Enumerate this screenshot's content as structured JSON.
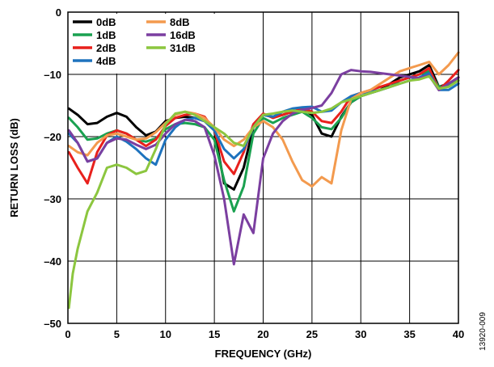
{
  "chart_data": {
    "type": "line",
    "xlabel": "FREQUENCY (GHz)",
    "ylabel": "RETURN LOSS (dB)",
    "xlim": [
      0,
      40
    ],
    "ylim": [
      -50,
      0
    ],
    "xticks": [
      0,
      5,
      10,
      15,
      20,
      25,
      30,
      35,
      40
    ],
    "yticks": [
      0,
      -10,
      -20,
      -30,
      -40,
      -50
    ],
    "xtick_labels": [
      "0",
      "5",
      "10",
      "15",
      "20",
      "25",
      "30",
      "35",
      "40"
    ],
    "ytick_labels": [
      "0",
      "–10",
      "–20",
      "–30",
      "–40",
      "–50"
    ],
    "grid": true,
    "legend_position": "top-left",
    "figure_id": "13920-009",
    "series": [
      {
        "name": "0dB",
        "color": "#000000",
        "x": [
          0.1,
          1,
          2,
          3,
          4,
          5,
          6,
          7,
          8,
          9,
          10,
          11,
          12,
          13,
          14,
          15,
          16,
          17,
          18,
          19,
          20,
          21,
          22,
          23,
          24,
          25,
          26,
          27,
          28,
          29,
          30,
          31,
          32,
          33,
          34,
          35,
          36,
          37,
          38,
          39,
          40
        ],
        "y": [
          -15.5,
          -16.5,
          -18,
          -17.8,
          -16.8,
          -16.2,
          -16.8,
          -18.5,
          -19.8,
          -19.2,
          -17.5,
          -17,
          -16.8,
          -17,
          -17.5,
          -19,
          -27.5,
          -28.5,
          -25,
          -18.5,
          -16.5,
          -16.8,
          -16.5,
          -16,
          -15.5,
          -16.5,
          -19.5,
          -20,
          -16.8,
          -14.5,
          -13.5,
          -13,
          -12.5,
          -11.5,
          -10.5,
          -10,
          -9.5,
          -8.5,
          -12,
          -11.5,
          -10.5
        ]
      },
      {
        "name": "1dB",
        "color": "#1aa150",
        "x": [
          0.1,
          1,
          2,
          3,
          4,
          5,
          6,
          7,
          8,
          9,
          10,
          11,
          12,
          13,
          14,
          15,
          16,
          17,
          18,
          19,
          20,
          21,
          22,
          23,
          24,
          25,
          26,
          27,
          28,
          29,
          30,
          31,
          32,
          33,
          34,
          35,
          36,
          37,
          38,
          39,
          40
        ],
        "y": [
          -17,
          -18.5,
          -20.5,
          -20.3,
          -19.5,
          -19,
          -19.5,
          -20.5,
          -20.8,
          -20.3,
          -18.8,
          -18,
          -17.8,
          -18,
          -18.5,
          -20.5,
          -27,
          -32,
          -28,
          -19.5,
          -17,
          -17.8,
          -17,
          -16.5,
          -16,
          -17,
          -18.5,
          -18.8,
          -17,
          -14.5,
          -13.5,
          -13,
          -12.5,
          -12,
          -11,
          -10.5,
          -10,
          -9.5,
          -12,
          -11.8,
          -11
        ]
      },
      {
        "name": "2dB",
        "color": "#e8201c",
        "x": [
          0.1,
          1,
          2,
          3,
          4,
          5,
          6,
          7,
          8,
          9,
          10,
          11,
          12,
          13,
          14,
          15,
          16,
          17,
          18,
          19,
          20,
          21,
          22,
          23,
          24,
          25,
          26,
          27,
          28,
          29,
          30,
          31,
          32,
          33,
          34,
          35,
          36,
          37,
          38,
          39,
          40
        ],
        "y": [
          -22.5,
          -25,
          -27.5,
          -22.5,
          -19.8,
          -19,
          -19.5,
          -20.5,
          -21.5,
          -20.5,
          -18.3,
          -17,
          -16.5,
          -16.3,
          -16.8,
          -19,
          -24,
          -26,
          -22.5,
          -18,
          -16.3,
          -17,
          -16.5,
          -16,
          -15.5,
          -16,
          -17.5,
          -17.8,
          -16,
          -13.5,
          -13,
          -12.5,
          -12,
          -11.5,
          -11,
          -10.5,
          -10,
          -9,
          -12.5,
          -11,
          -9.3
        ]
      },
      {
        "name": "4dB",
        "color": "#1e73be",
        "x": [
          0.1,
          1,
          2,
          3,
          4,
          5,
          6,
          7,
          8,
          9,
          10,
          11,
          12,
          13,
          14,
          15,
          16,
          17,
          18,
          19,
          20,
          21,
          22,
          23,
          24,
          25,
          26,
          27,
          28,
          29,
          30,
          31,
          32,
          33,
          34,
          35,
          36,
          37,
          38,
          39,
          40
        ],
        "y": [
          -19.5,
          -21,
          -24,
          -23.5,
          -21,
          -20,
          -20.8,
          -22,
          -23.5,
          -24.5,
          -20.5,
          -18.5,
          -17.3,
          -17,
          -17.5,
          -19,
          -22,
          -23.5,
          -22,
          -18.5,
          -16.5,
          -16.8,
          -16,
          -15.5,
          -15.3,
          -15.2,
          -16,
          -15.8,
          -14.5,
          -13.5,
          -13,
          -12.8,
          -12.5,
          -12,
          -11.5,
          -11,
          -10.5,
          -9.8,
          -12.5,
          -12.5,
          -11.5
        ]
      },
      {
        "name": "8dB",
        "color": "#f39a4e",
        "x": [
          0.1,
          1,
          2,
          3,
          4,
          5,
          6,
          7,
          8,
          9,
          10,
          11,
          12,
          13,
          14,
          15,
          16,
          17,
          18,
          19,
          20,
          21,
          22,
          23,
          24,
          25,
          26,
          27,
          28,
          29,
          30,
          31,
          32,
          33,
          34,
          35,
          36,
          37,
          38,
          39,
          40
        ],
        "y": [
          -21.5,
          -22.5,
          -23,
          -21,
          -19.8,
          -19.5,
          -20,
          -20.5,
          -20.3,
          -19.3,
          -17.8,
          -16.5,
          -16,
          -16.3,
          -17,
          -18.5,
          -20.5,
          -21.5,
          -20.5,
          -18.5,
          -17.5,
          -18.5,
          -20.5,
          -24,
          -27,
          -28,
          -26.5,
          -27.5,
          -19,
          -14,
          -13,
          -12.5,
          -11.5,
          -10.5,
          -9.5,
          -9,
          -8.5,
          -8,
          -10,
          -8.5,
          -6.5
        ]
      },
      {
        "name": "16dB",
        "color": "#7b3fa0",
        "x": [
          0.1,
          1,
          2,
          3,
          4,
          5,
          6,
          7,
          8,
          9,
          10,
          11,
          12,
          13,
          14,
          15,
          16,
          17,
          18,
          19,
          20,
          21,
          22,
          23,
          24,
          25,
          26,
          27,
          28,
          29,
          30,
          31,
          32,
          33,
          34,
          35,
          36,
          37,
          38,
          39,
          40
        ],
        "y": [
          -19,
          -21,
          -24,
          -23.5,
          -21,
          -20.3,
          -20.5,
          -21.3,
          -22,
          -21.3,
          -19.5,
          -18,
          -17.3,
          -17.5,
          -18.5,
          -23,
          -30,
          -40.5,
          -32.5,
          -35.5,
          -23.5,
          -19.5,
          -17.5,
          -16.3,
          -15.7,
          -15.4,
          -15,
          -13,
          -10,
          -9.3,
          -9.5,
          -9.6,
          -9.8,
          -10,
          -10.2,
          -10.4,
          -10.6,
          -10.2,
          -12.5,
          -11.5,
          -10.5
        ]
      },
      {
        "name": "31dB",
        "color": "#8cc63f",
        "x": [
          0.1,
          0.5,
          1,
          2,
          3,
          4,
          5,
          6,
          7,
          8,
          9,
          10,
          11,
          12,
          13,
          14,
          15,
          16,
          17,
          18,
          19,
          20,
          21,
          22,
          23,
          24,
          25,
          26,
          27,
          28,
          29,
          30,
          31,
          32,
          33,
          34,
          35,
          36,
          37,
          38,
          39,
          40
        ],
        "y": [
          -47.5,
          -42,
          -38,
          -32,
          -29,
          -25,
          -24.5,
          -25,
          -26,
          -25.5,
          -22,
          -18,
          -16.3,
          -16,
          -16.5,
          -17.5,
          -18.5,
          -19.5,
          -21,
          -21.5,
          -18.5,
          -16.5,
          -16.3,
          -16,
          -15.8,
          -16,
          -16.2,
          -16,
          -15.5,
          -14.5,
          -14,
          -13.5,
          -13,
          -12.5,
          -12,
          -11.5,
          -11,
          -10.8,
          -10.3,
          -12.3,
          -12,
          -11
        ]
      }
    ]
  }
}
